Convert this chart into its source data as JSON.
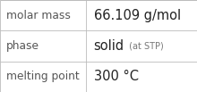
{
  "rows": [
    {
      "label": "molar mass",
      "value_parts": [
        {
          "text": "66.109 g/mol",
          "bold": false,
          "fontsize": 10.5,
          "color": "#222222"
        }
      ]
    },
    {
      "label": "phase",
      "value_parts": [
        {
          "text": "solid",
          "bold": false,
          "fontsize": 10.5,
          "color": "#222222"
        },
        {
          "text": " (at STP)",
          "bold": false,
          "fontsize": 7.0,
          "color": "#777777"
        }
      ]
    },
    {
      "label": "melting point",
      "value_parts": [
        {
          "text": "300 °C",
          "bold": false,
          "fontsize": 10.5,
          "color": "#222222"
        }
      ]
    }
  ],
  "col_split": 0.435,
  "background_color": "#ffffff",
  "border_color": "#bbbbbb",
  "label_fontsize": 8.8,
  "label_color": "#555555",
  "figwidth": 2.2,
  "figheight": 1.03,
  "dpi": 100
}
